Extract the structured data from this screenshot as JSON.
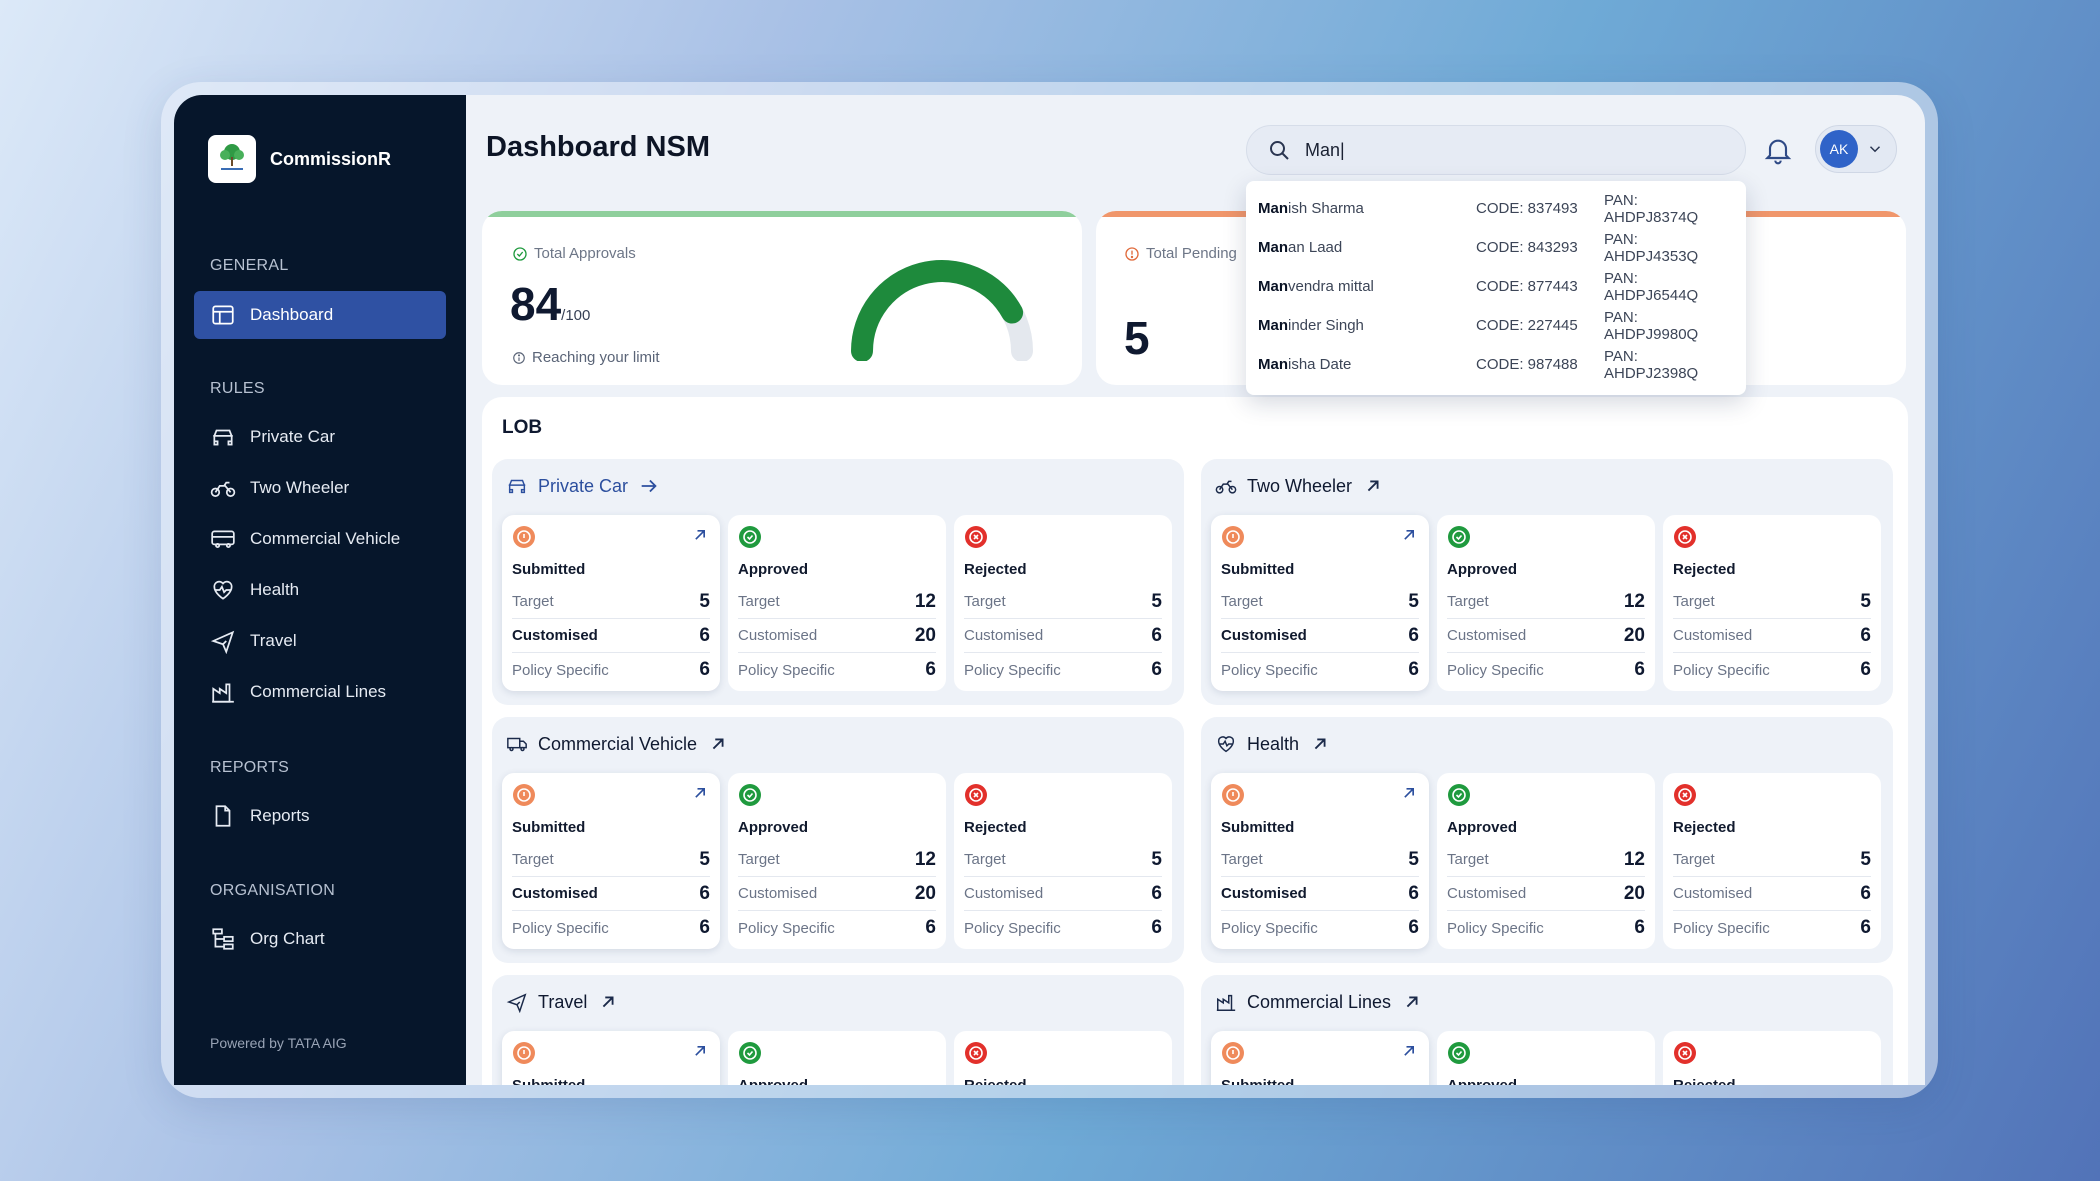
{
  "app": {
    "name": "CommissionR",
    "powered_by": "Powered by TATA AIG"
  },
  "sidebar": {
    "sections": [
      {
        "label": "GENERAL",
        "items": [
          {
            "label": "Dashboard",
            "icon": "layout-icon",
            "active": true
          }
        ]
      },
      {
        "label": "RULES",
        "items": [
          {
            "label": "Private Car",
            "icon": "car-icon"
          },
          {
            "label": "Two Wheeler",
            "icon": "motorbike-icon"
          },
          {
            "label": "Commercial Vehicle",
            "icon": "bus-icon"
          },
          {
            "label": "Health",
            "icon": "heart-pulse-icon"
          },
          {
            "label": "Travel",
            "icon": "plane-icon"
          },
          {
            "label": "Commercial Lines",
            "icon": "factory-icon"
          }
        ]
      },
      {
        "label": "REPORTS",
        "items": [
          {
            "label": "Reports",
            "icon": "document-icon"
          }
        ]
      },
      {
        "label": "ORGANISATION",
        "items": [
          {
            "label": "Org Chart",
            "icon": "org-chart-icon"
          }
        ]
      }
    ]
  },
  "header": {
    "title": "Dashboard NSM",
    "search_value": "Man|",
    "avatar_initials": "AK"
  },
  "search_results": [
    {
      "match": "Man",
      "rest": "ish Sharma",
      "code": "CODE: 837493",
      "pan": "PAN: AHDPJ8374Q"
    },
    {
      "match": "Man",
      "rest": "an Laad",
      "code": "CODE: 843293",
      "pan": "PAN: AHDPJ4353Q"
    },
    {
      "match": "Man",
      "rest": "vendra mittal",
      "code": "CODE: 877443",
      "pan": "PAN: AHDPJ6544Q"
    },
    {
      "match": "Man",
      "rest": "inder Singh",
      "code": "CODE: 227445",
      "pan": "PAN: AHDPJ9980Q"
    },
    {
      "match": "Man",
      "rest": "isha Date",
      "code": "CODE: 987488",
      "pan": "PAN: AHDPJ2398Q"
    }
  ],
  "stats": {
    "approvals": {
      "label": "Total Approvals",
      "value": "84",
      "suffix": "/100",
      "note": "Reaching your limit",
      "fraction": 0.84,
      "accent": "#8fcf9c",
      "gauge_color": "#1e8a3c"
    },
    "pending": {
      "label": "Total Pending",
      "value": "5",
      "accent": "#f0966b"
    }
  },
  "lob": {
    "title": "LOB",
    "labels": {
      "submitted": "Submitted",
      "approved": "Approved",
      "rejected": "Rejected",
      "target": "Target",
      "customised": "Customised",
      "policy_specific": "Policy Specific"
    },
    "panels": [
      {
        "name": "Private Car",
        "icon": "car-icon",
        "link": true
      },
      {
        "name": "Two Wheeler",
        "icon": "motorbike-icon"
      },
      {
        "name": "Commercial Vehicle",
        "icon": "truck-icon"
      },
      {
        "name": "Health",
        "icon": "heart-pulse-icon"
      },
      {
        "name": "Travel",
        "icon": "plane-icon"
      },
      {
        "name": "Commercial Lines",
        "icon": "factory-icon"
      }
    ],
    "values": {
      "submitted": {
        "target": "5",
        "customised": "6",
        "policy_specific": "6"
      },
      "approved": {
        "target": "12",
        "customised": "20",
        "policy_specific": "6"
      },
      "rejected": {
        "target": "5",
        "customised": "6",
        "policy_specific": "6"
      }
    },
    "colors": {
      "submitted": "#ef8a5b",
      "approved": "#1f9a3e",
      "rejected": "#e2302b"
    }
  }
}
